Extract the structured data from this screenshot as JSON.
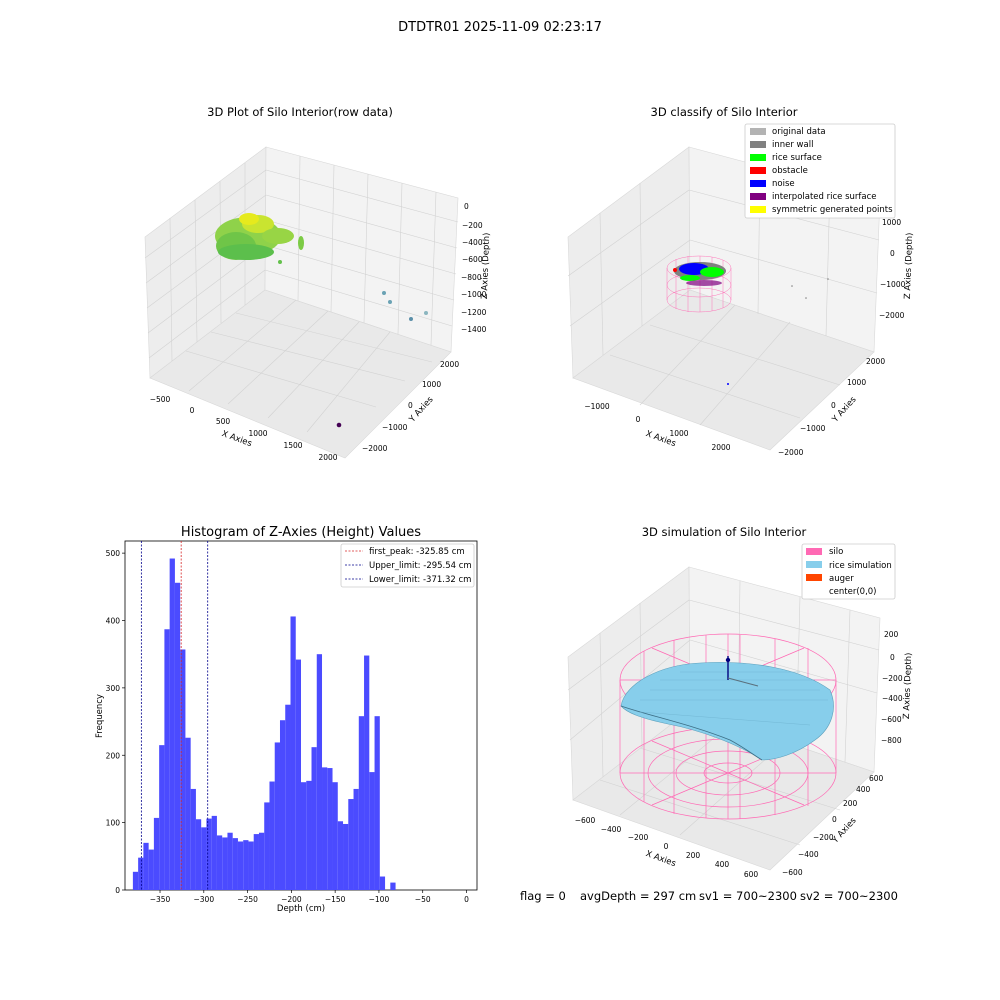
{
  "figure": {
    "suptitle": "DTDTR01 2025-11-09 02:23:17",
    "footer": {
      "flag": "flag = 0",
      "avg": "avgDepth = 297 cm",
      "sv1": "sv1 = 700~2300",
      "sv2": "sv2 = 700~2300"
    }
  },
  "colors": {
    "hist_bar": "#4b4bff",
    "first_peak": "#d62728",
    "limits": "#00008b",
    "grid": "#cfcfcf",
    "pane": "#f2f2f2",
    "silo": "#ff69b4",
    "rice": "#87ceeb",
    "auger": "#ff4500",
    "original": "#b3b3b3",
    "inner_wall": "#808080",
    "rice_surface": "#00ff00",
    "obstacle": "#ff0000",
    "noise": "#0000ff",
    "interp": "#800080",
    "symmetric": "#ffff00"
  },
  "panels": {
    "raw": {
      "title": "3D Plot of Silo Interior(row data)",
      "xlabel": "X Axies",
      "ylabel": "Y Axies",
      "zlabel": "Z Axies (Depth)",
      "xticks": [
        "−500",
        "0",
        "500",
        "1000",
        "1500",
        "2000"
      ],
      "yticks": [
        "−2000",
        "−1000",
        "0",
        "1000",
        "2000"
      ],
      "zticks": [
        "0",
        "−200",
        "−400",
        "−600",
        "−800",
        "−1000",
        "−1200",
        "−1400"
      ]
    },
    "classify": {
      "title": "3D classify of Silo Interior",
      "xlabel": "X Axies",
      "ylabel": "Y Axies",
      "zlabel": "Z Axies (Depth)",
      "xticks": [
        "−1000",
        "0",
        "1000",
        "2000"
      ],
      "yticks": [
        "−2000",
        "−1000",
        "0",
        "1000",
        "2000"
      ],
      "zticks": [
        "1000",
        "0",
        "−1000",
        "−2000"
      ],
      "legend": [
        {
          "label": "original data",
          "color": "#b3b3b3"
        },
        {
          "label": "inner wall",
          "color": "#808080"
        },
        {
          "label": "rice surface",
          "color": "#00ff00"
        },
        {
          "label": "obstacle",
          "color": "#ff0000"
        },
        {
          "label": "noise",
          "color": "#0000ff"
        },
        {
          "label": "interpolated rice surface",
          "color": "#800080"
        },
        {
          "label": "symmetric generated points",
          "color": "#ffff00"
        }
      ]
    },
    "simulation": {
      "title": "3D simulation of Silo Interior",
      "xlabel": "X Axies",
      "ylabel": "Y Axies",
      "zlabel": "Z Axies (Depth)",
      "xticks": [
        "−600",
        "−400",
        "−200",
        "0",
        "200",
        "400",
        "600"
      ],
      "yticks": [
        "−600",
        "−400",
        "−200",
        "0",
        "200",
        "400",
        "600"
      ],
      "zticks": [
        "200",
        "0",
        "−200",
        "−400",
        "−600",
        "−800"
      ],
      "legend": [
        {
          "label": "silo",
          "color": "#ff69b4"
        },
        {
          "label": "rice simulation",
          "color": "#87ceeb"
        },
        {
          "label": "auger",
          "color": "#ff4500"
        },
        {
          "label": "center(0,0)",
          "color": ""
        }
      ]
    }
  },
  "chart_data": {
    "type": "bar",
    "title": "Histogram of Z-Axies (Height) Values",
    "xlabel": "Depth (cm)",
    "ylabel": "Frequency",
    "bin_width": 6,
    "bin_start": -381,
    "x": [
      -378,
      -372,
      -366,
      -360,
      -354,
      -348,
      -342,
      -336,
      -330,
      -324,
      -318,
      -312,
      -306,
      -300,
      -294,
      -288,
      -282,
      -276,
      -270,
      -264,
      -258,
      -252,
      -246,
      -240,
      -234,
      -228,
      -222,
      -216,
      -210,
      -204,
      -198,
      -192,
      -186,
      -180,
      -174,
      -168,
      -162,
      -156,
      -150,
      -144,
      -138,
      -132,
      -126,
      -120,
      -114,
      -108,
      -102,
      -96,
      -90,
      -84,
      -78,
      -72,
      -66,
      -60,
      -54,
      -48,
      -42,
      -36,
      -30,
      -24,
      -18,
      -12,
      -6,
      0,
      6
    ],
    "values": [
      27,
      48,
      70,
      60,
      107,
      215,
      387,
      492,
      456,
      357,
      226,
      150,
      105,
      93,
      106,
      110,
      81,
      78,
      85,
      77,
      72,
      74,
      72,
      83,
      85,
      130,
      161,
      219,
      252,
      275,
      406,
      342,
      160,
      162,
      212,
      350,
      182,
      181,
      160,
      102,
      98,
      135,
      150,
      258,
      348,
      175,
      258,
      20,
      0,
      11,
      0,
      0,
      0,
      0,
      0,
      0,
      0,
      0,
      0,
      0,
      0,
      0,
      0,
      0,
      0
    ],
    "xticks": [
      -350,
      -300,
      -250,
      -200,
      -150,
      -100,
      -50,
      0
    ],
    "yticks": [
      0,
      100,
      200,
      300,
      400,
      500
    ],
    "xlim": [
      -390,
      12
    ],
    "ylim": [
      0,
      518
    ],
    "vlines": [
      {
        "value": -325.85,
        "label": "first_peak: -325.85 cm",
        "color": "#d62728"
      },
      {
        "value": -295.54,
        "label": "Upper_limit: -295.54 cm",
        "color": "#00008b"
      },
      {
        "value": -371.32,
        "label": "Lower_limit: -371.32 cm",
        "color": "#00008b"
      }
    ],
    "legend_position": "top-right",
    "grid": false
  }
}
